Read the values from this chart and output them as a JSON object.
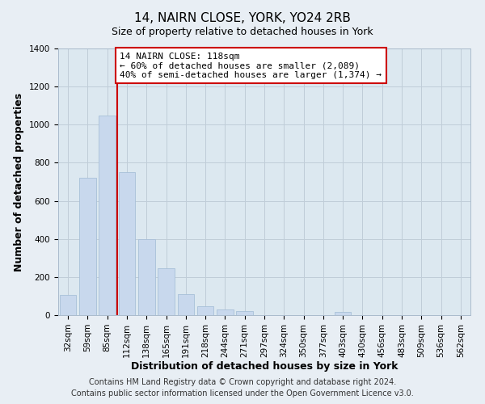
{
  "title": "14, NAIRN CLOSE, YORK, YO24 2RB",
  "subtitle": "Size of property relative to detached houses in York",
  "xlabel": "Distribution of detached houses by size in York",
  "ylabel": "Number of detached properties",
  "bar_labels": [
    "32sqm",
    "59sqm",
    "85sqm",
    "112sqm",
    "138sqm",
    "165sqm",
    "191sqm",
    "218sqm",
    "244sqm",
    "271sqm",
    "297sqm",
    "324sqm",
    "350sqm",
    "377sqm",
    "403sqm",
    "430sqm",
    "456sqm",
    "483sqm",
    "509sqm",
    "536sqm",
    "562sqm"
  ],
  "bar_values": [
    105,
    720,
    1050,
    750,
    400,
    245,
    110,
    48,
    28,
    22,
    0,
    0,
    0,
    0,
    15,
    0,
    0,
    0,
    0,
    0,
    0
  ],
  "bar_color": "#c8d8ed",
  "bar_edge_color": "#a8c0d8",
  "vline_x_index": 3,
  "vline_color": "#cc0000",
  "annotation_line1": "14 NAIRN CLOSE: 118sqm",
  "annotation_line2": "← 60% of detached houses are smaller (2,089)",
  "annotation_line3": "40% of semi-detached houses are larger (1,374) →",
  "annotation_box_color": "#ffffff",
  "annotation_box_edge_color": "#cc0000",
  "ylim": [
    0,
    1400
  ],
  "yticks": [
    0,
    200,
    400,
    600,
    800,
    1000,
    1200,
    1400
  ],
  "footer_line1": "Contains HM Land Registry data © Crown copyright and database right 2024.",
  "footer_line2": "Contains public sector information licensed under the Open Government Licence v3.0.",
  "title_fontsize": 11,
  "subtitle_fontsize": 9,
  "axis_label_fontsize": 9,
  "tick_fontsize": 7.5,
  "footer_fontsize": 7,
  "annotation_fontsize": 8,
  "background_color": "#e8eef4",
  "plot_background_color": "#dce8f0",
  "grid_color": "#c0cdd8"
}
